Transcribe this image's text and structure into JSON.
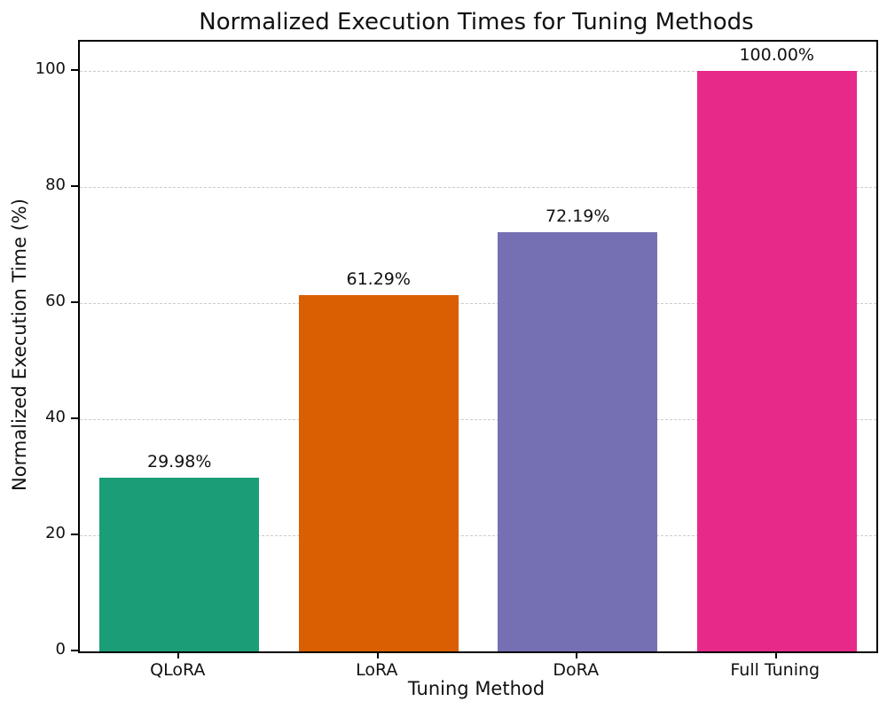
{
  "chart_data": {
    "type": "bar",
    "title": "Normalized Execution Times for Tuning Methods",
    "xlabel": "Tuning Method",
    "ylabel": "Normalized Execution Time (%)",
    "categories": [
      "QLoRA",
      "LoRA",
      "DoRA",
      "Full Tuning"
    ],
    "values": [
      29.98,
      61.29,
      72.19,
      100.0
    ],
    "value_labels": [
      "29.98%",
      "61.29%",
      "72.19%",
      "100.00%"
    ],
    "bar_colors": [
      "#1b9e77",
      "#d95f02",
      "#7570b3",
      "#e7298a"
    ],
    "yticks": [
      0,
      20,
      40,
      60,
      80,
      100
    ],
    "ytick_labels": [
      "0",
      "20",
      "40",
      "60",
      "80",
      "100"
    ],
    "ylim": [
      0,
      105
    ],
    "grid": "horizontal-dashed",
    "grid_color": "#cccccc",
    "legend": "none",
    "background_color": "#ffffff",
    "spine_color": "#000000"
  }
}
